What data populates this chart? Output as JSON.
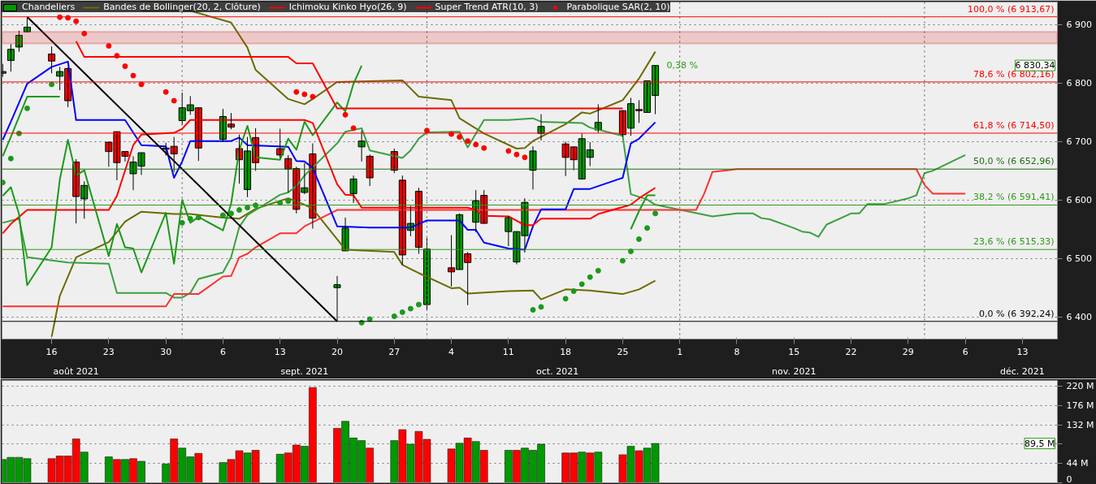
{
  "chart_data": [
    {
      "type": "candlestick",
      "xlim": [
        "2021-08-09T22:00",
        "2021-12-17T07:00"
      ],
      "ylim": [
        6362,
        6939
      ],
      "xticks": [
        {
          "value": "2021-08-16",
          "label": "16"
        },
        {
          "value": "2021-08-23",
          "label": "23"
        },
        {
          "value": "2021-08-30",
          "label": "30"
        },
        {
          "value": "2021-09-06",
          "label": "6"
        },
        {
          "value": "2021-09-13",
          "label": "13"
        },
        {
          "value": "2021-09-20",
          "label": "20"
        },
        {
          "value": "2021-09-27",
          "label": "27"
        },
        {
          "value": "2021-10-04",
          "label": "4"
        },
        {
          "value": "2021-10-11",
          "label": "11"
        },
        {
          "value": "2021-10-18",
          "label": "18"
        },
        {
          "value": "2021-10-25",
          "label": "25"
        },
        {
          "value": "2021-11-01",
          "label": "1"
        },
        {
          "value": "2021-11-08",
          "label": "8"
        },
        {
          "value": "2021-11-15",
          "label": "15"
        },
        {
          "value": "2021-11-22",
          "label": "22"
        },
        {
          "value": "2021-11-29",
          "label": "29"
        },
        {
          "value": "2021-12-06",
          "label": "6"
        },
        {
          "value": "2021-12-13",
          "label": "13"
        }
      ],
      "x2lim": [
        "2021-08-09T22:00",
        "2021-12-17T07:00"
      ],
      "x2ticks": [
        {
          "value": "2021-08-19",
          "label": "août 2021"
        },
        {
          "value": "2021-09-16",
          "label": "sept. 2021"
        },
        {
          "value": "2021-10-17",
          "label": "oct. 2021"
        },
        {
          "value": "2021-11-15",
          "label": "nov. 2021"
        },
        {
          "value": "2021-12-13",
          "label": "déc. 2021"
        }
      ],
      "yticks": [
        {
          "value": 6400,
          "label": "6 400"
        },
        {
          "value": 6500,
          "label": "6 500"
        },
        {
          "value": 6600,
          "label": "6 600"
        },
        {
          "value": 6700,
          "label": "6 700"
        },
        {
          "value": 6800,
          "label": "6 800"
        },
        {
          "value": 6900,
          "label": "6 900"
        }
      ],
      "grid": "y",
      "legend": "top left",
      "x": [
        "2021-08-10",
        "2021-08-11",
        "2021-08-12",
        "2021-08-13",
        "2021-08-16",
        "2021-08-17",
        "2021-08-18",
        "2021-08-19",
        "2021-08-20",
        "2021-08-23",
        "2021-08-24",
        "2021-08-25",
        "2021-08-26",
        "2021-08-27",
        "2021-08-30",
        "2021-08-31",
        "2021-09-01",
        "2021-09-02",
        "2021-09-03",
        "2021-09-06",
        "2021-09-07",
        "2021-09-08",
        "2021-09-09",
        "2021-09-10",
        "2021-09-13",
        "2021-09-14",
        "2021-09-15",
        "2021-09-16",
        "2021-09-17",
        "2021-09-20",
        "2021-09-21",
        "2021-09-22",
        "2021-09-23",
        "2021-09-24",
        "2021-09-27",
        "2021-09-28",
        "2021-09-29",
        "2021-09-30",
        "2021-10-01",
        "2021-10-04",
        "2021-10-05",
        "2021-10-06",
        "2021-10-07",
        "2021-10-08",
        "2021-10-11",
        "2021-10-12",
        "2021-10-13",
        "2021-10-14",
        "2021-10-15",
        "2021-10-18",
        "2021-10-19",
        "2021-10-20",
        "2021-10-21",
        "2021-10-22",
        "2021-10-25",
        "2021-10-26",
        "2021-10-27",
        "2021-10-28",
        "2021-10-29"
      ],
      "series": [
        {
          "type": "line",
          "name": "Bandes de Bollinger(20, 2, Clôture)",
          "color": "#6b6b00",
          "x": [
            "2021-08-27",
            "2021-09-02",
            "2021-09-07",
            "2021-09-09",
            "2021-09-10",
            "2021-09-14",
            "2021-09-16",
            "2021-09-17",
            "2021-09-20",
            "2021-09-28",
            "2021-09-30",
            "2021-10-04",
            "2021-10-05",
            "2021-10-08",
            "2021-10-12",
            "2021-10-13",
            "2021-10-14",
            "2021-10-18",
            "2021-10-20",
            "2021-10-21",
            "2021-10-25",
            "2021-10-27",
            "2021-10-29"
          ],
          "values": [
            6924,
            6924,
            6904,
            6861,
            6823,
            6773,
            6764,
            6773,
            6802,
            6805,
            6777,
            6771,
            6740,
            6714,
            6688,
            6689,
            6701,
            6730,
            6750,
            6748,
            6771,
            6808,
            6854
          ]
        },
        {
          "type": "line",
          "color": "#6b6b00",
          "x": [
            "2021-08-16",
            "2021-08-17",
            "2021-08-19",
            "2021-08-23",
            "2021-08-25",
            "2021-08-27",
            "2021-08-31",
            "2021-09-02",
            "2021-09-06",
            "2021-09-08",
            "2021-09-10",
            "2021-09-14",
            "2021-09-16",
            "2021-09-17",
            "2021-09-20",
            "2021-09-21",
            "2021-09-27",
            "2021-09-28",
            "2021-09-30",
            "2021-10-04",
            "2021-10-05",
            "2021-10-06",
            "2021-10-11",
            "2021-10-14",
            "2021-10-15",
            "2021-10-18",
            "2021-10-21",
            "2021-10-25",
            "2021-10-27",
            "2021-10-29"
          ],
          "values": [
            6366,
            6436,
            6502,
            6528,
            6563,
            6580,
            6576,
            6576,
            6570,
            6568,
            6585,
            6603,
            6592,
            6585,
            6533,
            6515,
            6511,
            6489,
            6475,
            6449,
            6450,
            6440,
            6444,
            6445,
            6430,
            6447,
            6445,
            6439,
            6447,
            6462
          ]
        },
        {
          "type": "line",
          "color": "#3aa040",
          "x": [
            "2021-08-10",
            "2021-08-12",
            "2021-08-13",
            "2021-08-18",
            "2021-08-23",
            "2021-08-24",
            "2021-08-30",
            "2021-08-31",
            "2021-09-01",
            "2021-09-02",
            "2021-09-03",
            "2021-09-06",
            "2021-09-07",
            "2021-09-08",
            "2021-09-09",
            "2021-09-13",
            "2021-09-14",
            "2021-09-15",
            "2021-09-16",
            "2021-09-20",
            "2021-09-21",
            "2021-09-23",
            "2021-09-24",
            "2021-09-28",
            "2021-09-29",
            "2021-09-30",
            "2021-10-01",
            "2021-10-05",
            "2021-10-06",
            "2021-10-08",
            "2021-10-11",
            "2021-10-14",
            "2021-10-15",
            "2021-10-20",
            "2021-10-21",
            "2021-10-25",
            "2021-10-26",
            "2021-10-28",
            "2021-10-29",
            "2021-11-05",
            "2021-11-08",
            "2021-11-10",
            "2021-11-11",
            "2021-11-12",
            "2021-11-15",
            "2021-11-16",
            "2021-11-17",
            "2021-11-18",
            "2021-11-19",
            "2021-11-22",
            "2021-11-23",
            "2021-11-24",
            "2021-11-26",
            "2021-11-29",
            "2021-11-30",
            "2021-12-01",
            "2021-12-02",
            "2021-12-06"
          ],
          "values": [
            6561,
            6568,
            6502,
            6493,
            6491,
            6441,
            6441,
            6433,
            6433,
            6441,
            6465,
            6476,
            6502,
            6554,
            6574,
            6609,
            6613,
            6624,
            6642,
            6697,
            6717,
            6723,
            6685,
            6672,
            6685,
            6705,
            6716,
            6717,
            6690,
            6737,
            6737,
            6740,
            6734,
            6732,
            6724,
            6710,
            6610,
            6601,
            6592,
            6572,
            6577,
            6577,
            6569,
            6567,
            6552,
            6546,
            6544,
            6537,
            6558,
            6577,
            6577,
            6593,
            6593,
            6603,
            6608,
            6646,
            6650,
            6677
          ]
        },
        {
          "type": "line",
          "color": "#ff3030",
          "x": [
            "2021-08-10",
            "2021-08-30",
            "2021-08-31",
            "2021-09-03",
            "2021-09-06",
            "2021-09-07",
            "2021-09-08",
            "2021-09-09",
            "2021-09-10",
            "2021-09-13",
            "2021-09-15",
            "2021-09-16",
            "2021-09-20",
            "2021-11-03",
            "2021-11-04",
            "2021-11-05",
            "2021-11-08",
            "2021-11-30",
            "2021-12-01",
            "2021-12-02",
            "2021-12-06"
          ],
          "values": [
            6418,
            6418,
            6439,
            6439,
            6469,
            6470,
            6502,
            6508,
            6519,
            6543,
            6543,
            6555,
            6583,
            6583,
            6611,
            6648,
            6653,
            6653,
            6626,
            6611,
            6611
          ]
        },
        {
          "type": "line",
          "color": "#0000ff",
          "x": [
            "2021-08-10",
            "2021-08-11",
            "2021-08-13",
            "2021-08-16",
            "2021-08-18",
            "2021-08-19",
            "2021-08-25",
            "2021-08-27",
            "2021-08-30",
            "2021-08-31",
            "2021-09-01",
            "2021-09-02",
            "2021-09-07",
            "2021-09-08",
            "2021-09-09",
            "2021-09-14",
            "2021-09-15",
            "2021-09-16",
            "2021-09-17",
            "2021-09-20",
            "2021-09-24",
            "2021-09-29",
            "2021-10-01",
            "2021-10-05",
            "2021-10-06",
            "2021-10-07",
            "2021-10-08",
            "2021-10-11",
            "2021-10-13",
            "2021-10-14",
            "2021-10-15",
            "2021-10-18",
            "2021-10-19",
            "2021-10-21",
            "2021-10-25",
            "2021-10-26",
            "2021-10-27",
            "2021-10-29"
          ],
          "values": [
            6703,
            6734,
            6799,
            6828,
            6837,
            6737,
            6737,
            6694,
            6692,
            6638,
            6666,
            6701,
            6701,
            6707,
            6694,
            6691,
            6667,
            6666,
            6655,
            6555,
            6553,
            6553,
            6565,
            6565,
            6549,
            6549,
            6527,
            6517,
            6515,
            6555,
            6584,
            6584,
            6619,
            6619,
            6638,
            6697,
            6705,
            6733
          ]
        },
        {
          "type": "line",
          "name": "Ichimoku Kinko Hyo(26, 9)",
          "color": "#ff0000",
          "x": [
            "2021-08-10",
            "2021-08-11",
            "2021-08-13",
            "2021-08-23",
            "2021-08-24",
            "2021-08-26",
            "2021-08-27",
            "2021-08-31",
            "2021-09-01",
            "2021-09-02",
            "2021-09-16",
            "2021-09-17",
            "2021-09-20",
            "2021-09-21",
            "2021-09-22",
            "2021-09-23",
            "2021-10-06",
            "2021-10-07",
            "2021-10-08",
            "2021-10-11",
            "2021-10-13",
            "2021-10-14",
            "2021-10-15",
            "2021-10-21",
            "2021-10-22",
            "2021-10-26",
            "2021-10-27",
            "2021-10-29"
          ],
          "values": [
            6543,
            6559,
            6583,
            6583,
            6607,
            6694,
            6712,
            6715,
            6722,
            6737,
            6737,
            6732,
            6627,
            6609,
            6608,
            6587,
            6587,
            6583,
            6573,
            6572,
            6557,
            6557,
            6568,
            6568,
            6576,
            6592,
            6603,
            6621
          ]
        },
        {
          "type": "line",
          "color": "#1a9a1a",
          "x": [
            "2021-08-10",
            "2021-08-11",
            "2021-08-12",
            "2021-08-13",
            "2021-08-16",
            "2021-08-17",
            "2021-08-18",
            "2021-08-19",
            "2021-08-20",
            "2021-08-23",
            "2021-08-24",
            "2021-08-25",
            "2021-08-26",
            "2021-08-27",
            "2021-08-30",
            "2021-08-31",
            "2021-09-01",
            "2021-09-02",
            "2021-09-03",
            "2021-09-06",
            "2021-09-07",
            "2021-09-08",
            "2021-09-09",
            "2021-09-10",
            "2021-09-13",
            "2021-09-14",
            "2021-09-15",
            "2021-09-16",
            "2021-09-17",
            "2021-09-20",
            "2021-09-21",
            "2021-09-22",
            "2021-09-23"
          ],
          "values": [
            6607,
            6622,
            6576,
            6454,
            6519,
            6635,
            6703,
            6642,
            6651,
            6504,
            6559,
            6519,
            6517,
            6476,
            6578,
            6491,
            6600,
            6561,
            6571,
            6548,
            6594,
            6686,
            6727,
            6673,
            6669,
            6705,
            6686,
            6734,
            6711,
            6767,
            6752,
            6799,
            6830
          ]
        },
        {
          "type": "line",
          "name": "Super Trend ATR(10, 3)",
          "color": "#ff0000",
          "x": [
            "2021-08-19",
            "2021-08-20",
            "2021-09-14",
            "2021-09-15",
            "2021-09-17",
            "2021-09-20",
            "2021-10-25"
          ],
          "values": [
            6872,
            6845,
            6845,
            6834,
            6834,
            6757,
            6757
          ]
        },
        {
          "type": "line",
          "color": "#1a9a1a",
          "x": [
            "2021-08-10",
            "2021-08-11",
            "2021-08-13",
            "2021-08-17"
          ],
          "values": [
            6675,
            6708,
            6777,
            6777
          ]
        },
        {
          "type": "line",
          "color": "#1a9a1a",
          "x": [
            "2021-10-26",
            "2021-10-27",
            "2021-10-28",
            "2021-10-29"
          ],
          "values": [
            6550,
            6581,
            6608,
            6608
          ]
        },
        {
          "type": "line",
          "color": "#000000",
          "x": [
            "2021-08-13",
            "2021-09-20"
          ],
          "values": [
            6913.67,
            6392.24
          ]
        },
        {
          "type": "scatter",
          "name": "Parabolique SAR(2, 10)",
          "color": "#ff0000",
          "x": [
            "2021-08-17",
            "2021-08-18",
            "2021-08-19",
            "2021-08-20",
            "2021-08-23",
            "2021-08-24",
            "2021-08-25",
            "2021-08-26",
            "2021-08-27",
            "2021-08-30",
            "2021-08-31",
            "2021-09-15",
            "2021-09-16",
            "2021-09-17",
            "2021-09-21",
            "2021-09-22",
            "2021-10-01",
            "2021-10-04",
            "2021-10-05",
            "2021-10-06",
            "2021-10-07",
            "2021-10-08",
            "2021-10-11",
            "2021-10-12",
            "2021-10-13"
          ],
          "values": [
            6913,
            6912,
            6906,
            6885,
            6864,
            6847,
            6829,
            6813,
            6798,
            6785,
            6770,
            6785,
            6781,
            6777,
            6746,
            6723,
            6719,
            6713,
            6708,
            6701,
            6695,
            6689,
            6684,
            6678,
            6673
          ]
        },
        {
          "type": "scatter",
          "color": "#1a9a1a",
          "x": [
            "2021-08-10",
            "2021-08-11",
            "2021-08-12",
            "2021-08-13",
            "2021-08-16",
            "2021-09-01",
            "2021-09-02",
            "2021-09-03",
            "2021-09-06",
            "2021-09-07",
            "2021-09-08",
            "2021-09-09",
            "2021-09-10",
            "2021-09-13",
            "2021-09-14",
            "2021-09-23",
            "2021-09-24",
            "2021-09-27",
            "2021-09-28",
            "2021-09-29",
            "2021-09-30",
            "2021-10-14",
            "2021-10-15",
            "2021-10-18",
            "2021-10-19",
            "2021-10-20",
            "2021-10-21",
            "2021-10-22",
            "2021-10-25",
            "2021-10-26",
            "2021-10-27",
            "2021-10-28",
            "2021-10-29"
          ],
          "values": [
            6630,
            6671,
            6714,
            6757,
            6798,
            6561,
            6568,
            6570,
            6574,
            6577,
            6583,
            6587,
            6591,
            6595,
            6598,
            6390,
            6396,
            6401,
            6408,
            6414,
            6421,
            6412,
            6417,
            6431,
            6444,
            6456,
            6468,
            6479,
            6496,
            6512,
            6533,
            6552,
            6577
          ]
        },
        {
          "type": "candlestick",
          "name": "Chandeliers",
          "colors": [
            "#009900",
            "#009900",
            "#009900",
            "#009900",
            "#ff0000",
            "#009900",
            "#ff0000",
            "#ff0000",
            "#009900",
            "#ff0000",
            "#ff0000",
            "#ff0000",
            "#009900",
            "#009900",
            "#ff0000",
            "#ff0000",
            "#009900",
            "#009900",
            "#ff0000",
            "#009900",
            "#ff0000",
            "#ff0000",
            "#009900",
            "#ff0000",
            "#ff0000",
            "#ff0000",
            "#ff0000",
            "#009900",
            "#ff0000",
            "#009900",
            "#009900",
            "#009900",
            "#009900",
            "#ff0000",
            "#ff0000",
            "#ff0000",
            "#009900",
            "#ff0000",
            "#009900",
            "#ff0000",
            "#009900",
            "#ff0000",
            "#009900",
            "#ff0000",
            "#009900",
            "#009900",
            "#009900",
            "#009900",
            "#009900",
            "#ff0000",
            "#ff0000",
            "#009900",
            "#009900",
            "#009900",
            "#ff0000",
            "#009900",
            "#ff0000",
            "#009900",
            "#009900"
          ],
          "ohlc": [
            [
              6817,
              6833,
              6811,
              6820
            ],
            [
              6839,
              6867,
              6820,
              6858
            ],
            [
              6862,
              6890,
              6854,
              6882
            ],
            [
              6888,
              6913.67,
              6888,
              6896
            ],
            [
              6850,
              6863,
              6817,
              6838
            ],
            [
              6812,
              6828,
              6788,
              6820
            ],
            [
              6825,
              6827,
              6759,
              6770
            ],
            [
              6665,
              6670,
              6560,
              6606
            ],
            [
              6602,
              6632,
              6568,
              6625
            ],
            [
              6699,
              6700,
              6657,
              6683
            ],
            [
              6717,
              6717,
              6634,
              6664
            ],
            [
              6683,
              6683,
              6666,
              6675
            ],
            [
              6645,
              6675,
              6617,
              6665
            ],
            [
              6658,
              6681,
              6643,
              6681
            ],
            [
              6689,
              6698,
              6676,
              6687
            ],
            [
              6692,
              6708,
              6648,
              6679
            ],
            [
              6736,
              6784,
              6729,
              6758
            ],
            [
              6753,
              6778,
              6746,
              6763
            ],
            [
              6758,
              6758,
              6667,
              6689
            ],
            [
              6704,
              6756,
              6700,
              6743
            ],
            [
              6730,
              6749,
              6721,
              6725
            ],
            [
              6688,
              6712,
              6628,
              6669
            ],
            [
              6618,
              6708,
              6605,
              6684
            ],
            [
              6707,
              6723,
              6650,
              6664
            ],
            [
              6688,
              6722,
              6672,
              6677
            ],
            [
              6671,
              6677,
              6613,
              6653
            ],
            [
              6654,
              6657,
              6577,
              6584
            ],
            [
              6613,
              6663,
              6610,
              6621
            ],
            [
              6679,
              6697,
              6551,
              6569
            ],
            [
              6450,
              6470,
              6392.24,
              6455
            ],
            [
              6513,
              6570,
              6513,
              6552
            ],
            [
              6611,
              6642,
              6595,
              6636
            ],
            [
              6691,
              6719,
              6666,
              6701
            ],
            [
              6675,
              6678,
              6624,
              6638
            ],
            [
              6683,
              6688,
              6646,
              6651
            ],
            [
              6634,
              6642,
              6489,
              6506
            ],
            [
              6548,
              6590,
              6538,
              6560
            ],
            [
              6615,
              6621,
              6508,
              6519
            ],
            [
              6421,
              6535,
              6411,
              6516
            ],
            [
              6484,
              6540,
              6452,
              6477
            ],
            [
              6481,
              6577,
              6481,
              6575
            ],
            [
              6508,
              6511,
              6420,
              6493
            ],
            [
              6562,
              6617,
              6545,
              6599
            ],
            [
              6608,
              6617,
              6560,
              6560
            ],
            [
              6546,
              6573,
              6521,
              6570
            ],
            [
              6494,
              6546,
              6490,
              6546
            ],
            [
              6539,
              6603,
              6510,
              6596
            ],
            [
              6651,
              6692,
              6618,
              6684
            ],
            [
              6714,
              6747,
              6702,
              6726
            ],
            [
              6696,
              6700,
              6641,
              6673
            ],
            [
              6691,
              6691,
              6651,
              6669
            ],
            [
              6636,
              6714,
              6636,
              6705
            ],
            [
              6673,
              6699,
              6658,
              6686
            ],
            [
              6720,
              6764,
              6715,
              6733
            ],
            [
              6753,
              6753,
              6708,
              6712
            ],
            [
              6723,
              6775,
              6710,
              6765
            ],
            [
              6755,
              6771,
              6732,
              6753
            ],
            [
              6750,
              6804,
              6750,
              6804
            ],
            [
              6779,
              6830.34,
              6747,
              6830.34
            ]
          ]
        }
      ],
      "ref_lines": [
        {
          "axis": "y",
          "value": 6913.67,
          "label": "100,0 % (6 913,67)",
          "color": "#ff0000"
        },
        {
          "axis": "y",
          "value": 6802.16,
          "label": "78,6 % (6 802,16)",
          "color": "#ff0000"
        },
        {
          "axis": "y",
          "value": 6714.5,
          "label": "61,8 % (6 714,50)",
          "color": "#ff0000"
        },
        {
          "axis": "y",
          "value": 6652.96,
          "label": "50,0 % (6 652,96)",
          "color": "#1f6f10"
        },
        {
          "axis": "y",
          "value": 6591.41,
          "label": "38,2 % (6 591,41)",
          "color": "#2f9a1a"
        },
        {
          "axis": "y",
          "value": 6515.33,
          "label": "23,6 % (6 515,33)",
          "color": "#2f9a1a"
        },
        {
          "axis": "y",
          "value": 6392.24,
          "label": "0,0 % (6 392,24)",
          "color": "#000000"
        },
        {
          "axis": "x",
          "value": "2021-09-01",
          "color": "#555555",
          "line_style": "dotted"
        },
        {
          "axis": "x",
          "value": "2021-10-01",
          "color": "#555555",
          "line_style": "dotted"
        },
        {
          "axis": "x",
          "value": "2021-11-01",
          "color": "#555555",
          "line_style": "dotted"
        },
        {
          "axis": "x",
          "value": "2021-12-01",
          "color": "#555555",
          "line_style": "dotted"
        }
      ],
      "bands": [
        {
          "axis": "y",
          "from": 6868,
          "to": 6888,
          "color": "#e03030"
        }
      ],
      "annotations": [
        {
          "text": "0,38 %",
          "x": "2021-10-29",
          "y": 6830.34
        },
        "6 830,34"
      ]
    },
    {
      "type": "bar",
      "xlim": [
        "2021-08-09T22:00",
        "2021-12-17T07:00"
      ],
      "ylim": [
        0,
        233
      ],
      "tick_labels": "y",
      "grid": "y",
      "x": [
        "2021-08-10",
        "2021-08-11",
        "2021-08-12",
        "2021-08-13",
        "2021-08-16",
        "2021-08-17",
        "2021-08-18",
        "2021-08-19",
        "2021-08-20",
        "2021-08-23",
        "2021-08-24",
        "2021-08-25",
        "2021-08-26",
        "2021-08-27",
        "2021-08-30",
        "2021-08-31",
        "2021-09-01",
        "2021-09-02",
        "2021-09-03",
        "2021-09-06",
        "2021-09-07",
        "2021-09-08",
        "2021-09-09",
        "2021-09-10",
        "2021-09-13",
        "2021-09-14",
        "2021-09-15",
        "2021-09-16",
        "2021-09-17",
        "2021-09-20",
        "2021-09-21",
        "2021-09-22",
        "2021-09-23",
        "2021-09-24",
        "2021-09-27",
        "2021-09-28",
        "2021-09-29",
        "2021-09-30",
        "2021-10-01",
        "2021-10-04",
        "2021-10-05",
        "2021-10-06",
        "2021-10-07",
        "2021-10-08",
        "2021-10-11",
        "2021-10-12",
        "2021-10-13",
        "2021-10-14",
        "2021-10-15",
        "2021-10-18",
        "2021-10-19",
        "2021-10-20",
        "2021-10-21",
        "2021-10-22",
        "2021-10-25",
        "2021-10-26",
        "2021-10-27",
        "2021-10-28",
        "2021-10-29"
      ],
      "yticks": [
        0,
        {
          "value": 44,
          "label": "44 M"
        },
        {
          "value": 88,
          "label": null
        },
        {
          "value": 132,
          "label": "132 M"
        },
        {
          "value": 176,
          "label": "176 M"
        },
        {
          "value": 220,
          "label": "220 M"
        }
      ],
      "values": [
        53,
        58,
        58,
        55,
        55,
        61,
        61,
        100,
        70,
        59,
        53,
        53,
        55,
        49,
        43,
        100,
        79,
        59,
        67,
        46,
        53,
        73,
        68,
        74,
        65,
        68,
        86,
        83,
        217,
        124,
        140,
        102,
        96,
        79,
        96,
        121,
        88,
        117,
        99,
        77,
        90,
        102,
        94,
        74,
        74,
        74,
        79,
        74,
        88,
        68,
        68,
        70,
        68,
        70,
        64,
        83,
        73,
        79,
        89.5
      ],
      "colors": [
        "#009900",
        "#009900",
        "#009900",
        "#009900",
        "#ff0000",
        "#ff0000",
        "#ff0000",
        "#ff0000",
        "#009900",
        "#009900",
        "#ff0000",
        "#009900",
        "#ff0000",
        "#009900",
        "#009900",
        "#ff0000",
        "#009900",
        "#009900",
        "#ff0000",
        "#009900",
        "#ff0000",
        "#ff0000",
        "#009900",
        "#ff0000",
        "#009900",
        "#ff0000",
        "#ff0000",
        "#009900",
        "#ff0000",
        "#ff0000",
        "#009900",
        "#009900",
        "#009900",
        "#ff0000",
        "#009900",
        "#ff0000",
        "#009900",
        "#ff0000",
        "#ff0000",
        "#ff0000",
        "#009900",
        "#ff0000",
        "#009900",
        "#ff0000",
        "#009900",
        "#ff0000",
        "#009900",
        "#009900",
        "#009900",
        "#ff0000",
        "#ff0000",
        "#009900",
        "#ff0000",
        "#009900",
        "#ff0000",
        "#009900",
        "#ff0000",
        "#009900",
        "#009900"
      ],
      "annotations": [
        {
          "text": "89,5 M",
          "y": 89.5
        }
      ]
    }
  ]
}
